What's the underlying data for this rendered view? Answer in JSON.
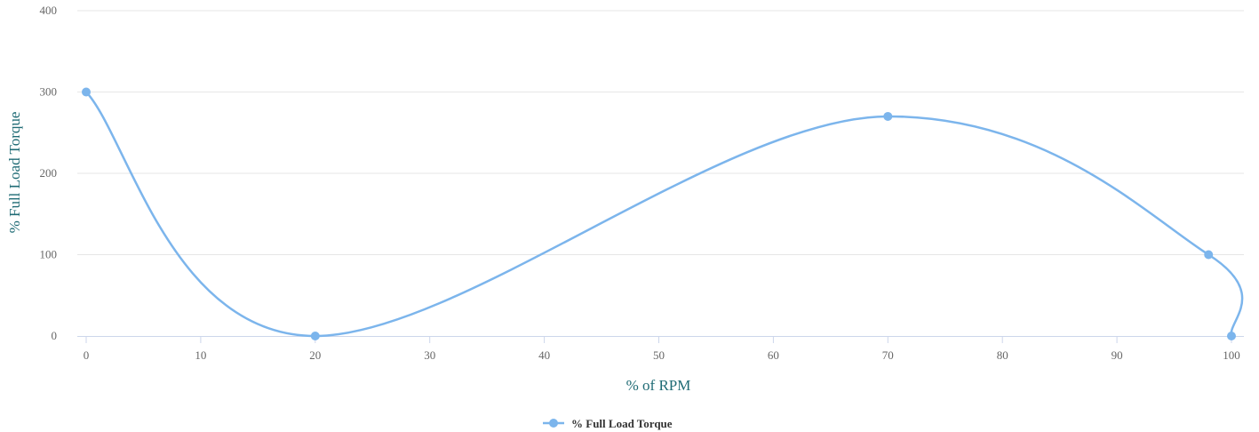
{
  "chart_data": {
    "type": "line",
    "smooth": true,
    "title": "",
    "xlabel": "% of RPM",
    "ylabel": "% Full Load Torque",
    "xlim": [
      0,
      100
    ],
    "ylim": [
      0,
      400
    ],
    "x_ticks": [
      0,
      10,
      20,
      30,
      40,
      50,
      60,
      70,
      80,
      90,
      100
    ],
    "y_ticks": [
      0,
      100,
      200,
      300,
      400
    ],
    "grid": "horizontal",
    "legend_position": "bottom-center",
    "series": [
      {
        "name": "% Full Load Torque",
        "color": "#7cb5ec",
        "x": [
          0,
          20,
          70,
          98,
          100
        ],
        "y": [
          300,
          0,
          270,
          100,
          0
        ]
      }
    ]
  }
}
